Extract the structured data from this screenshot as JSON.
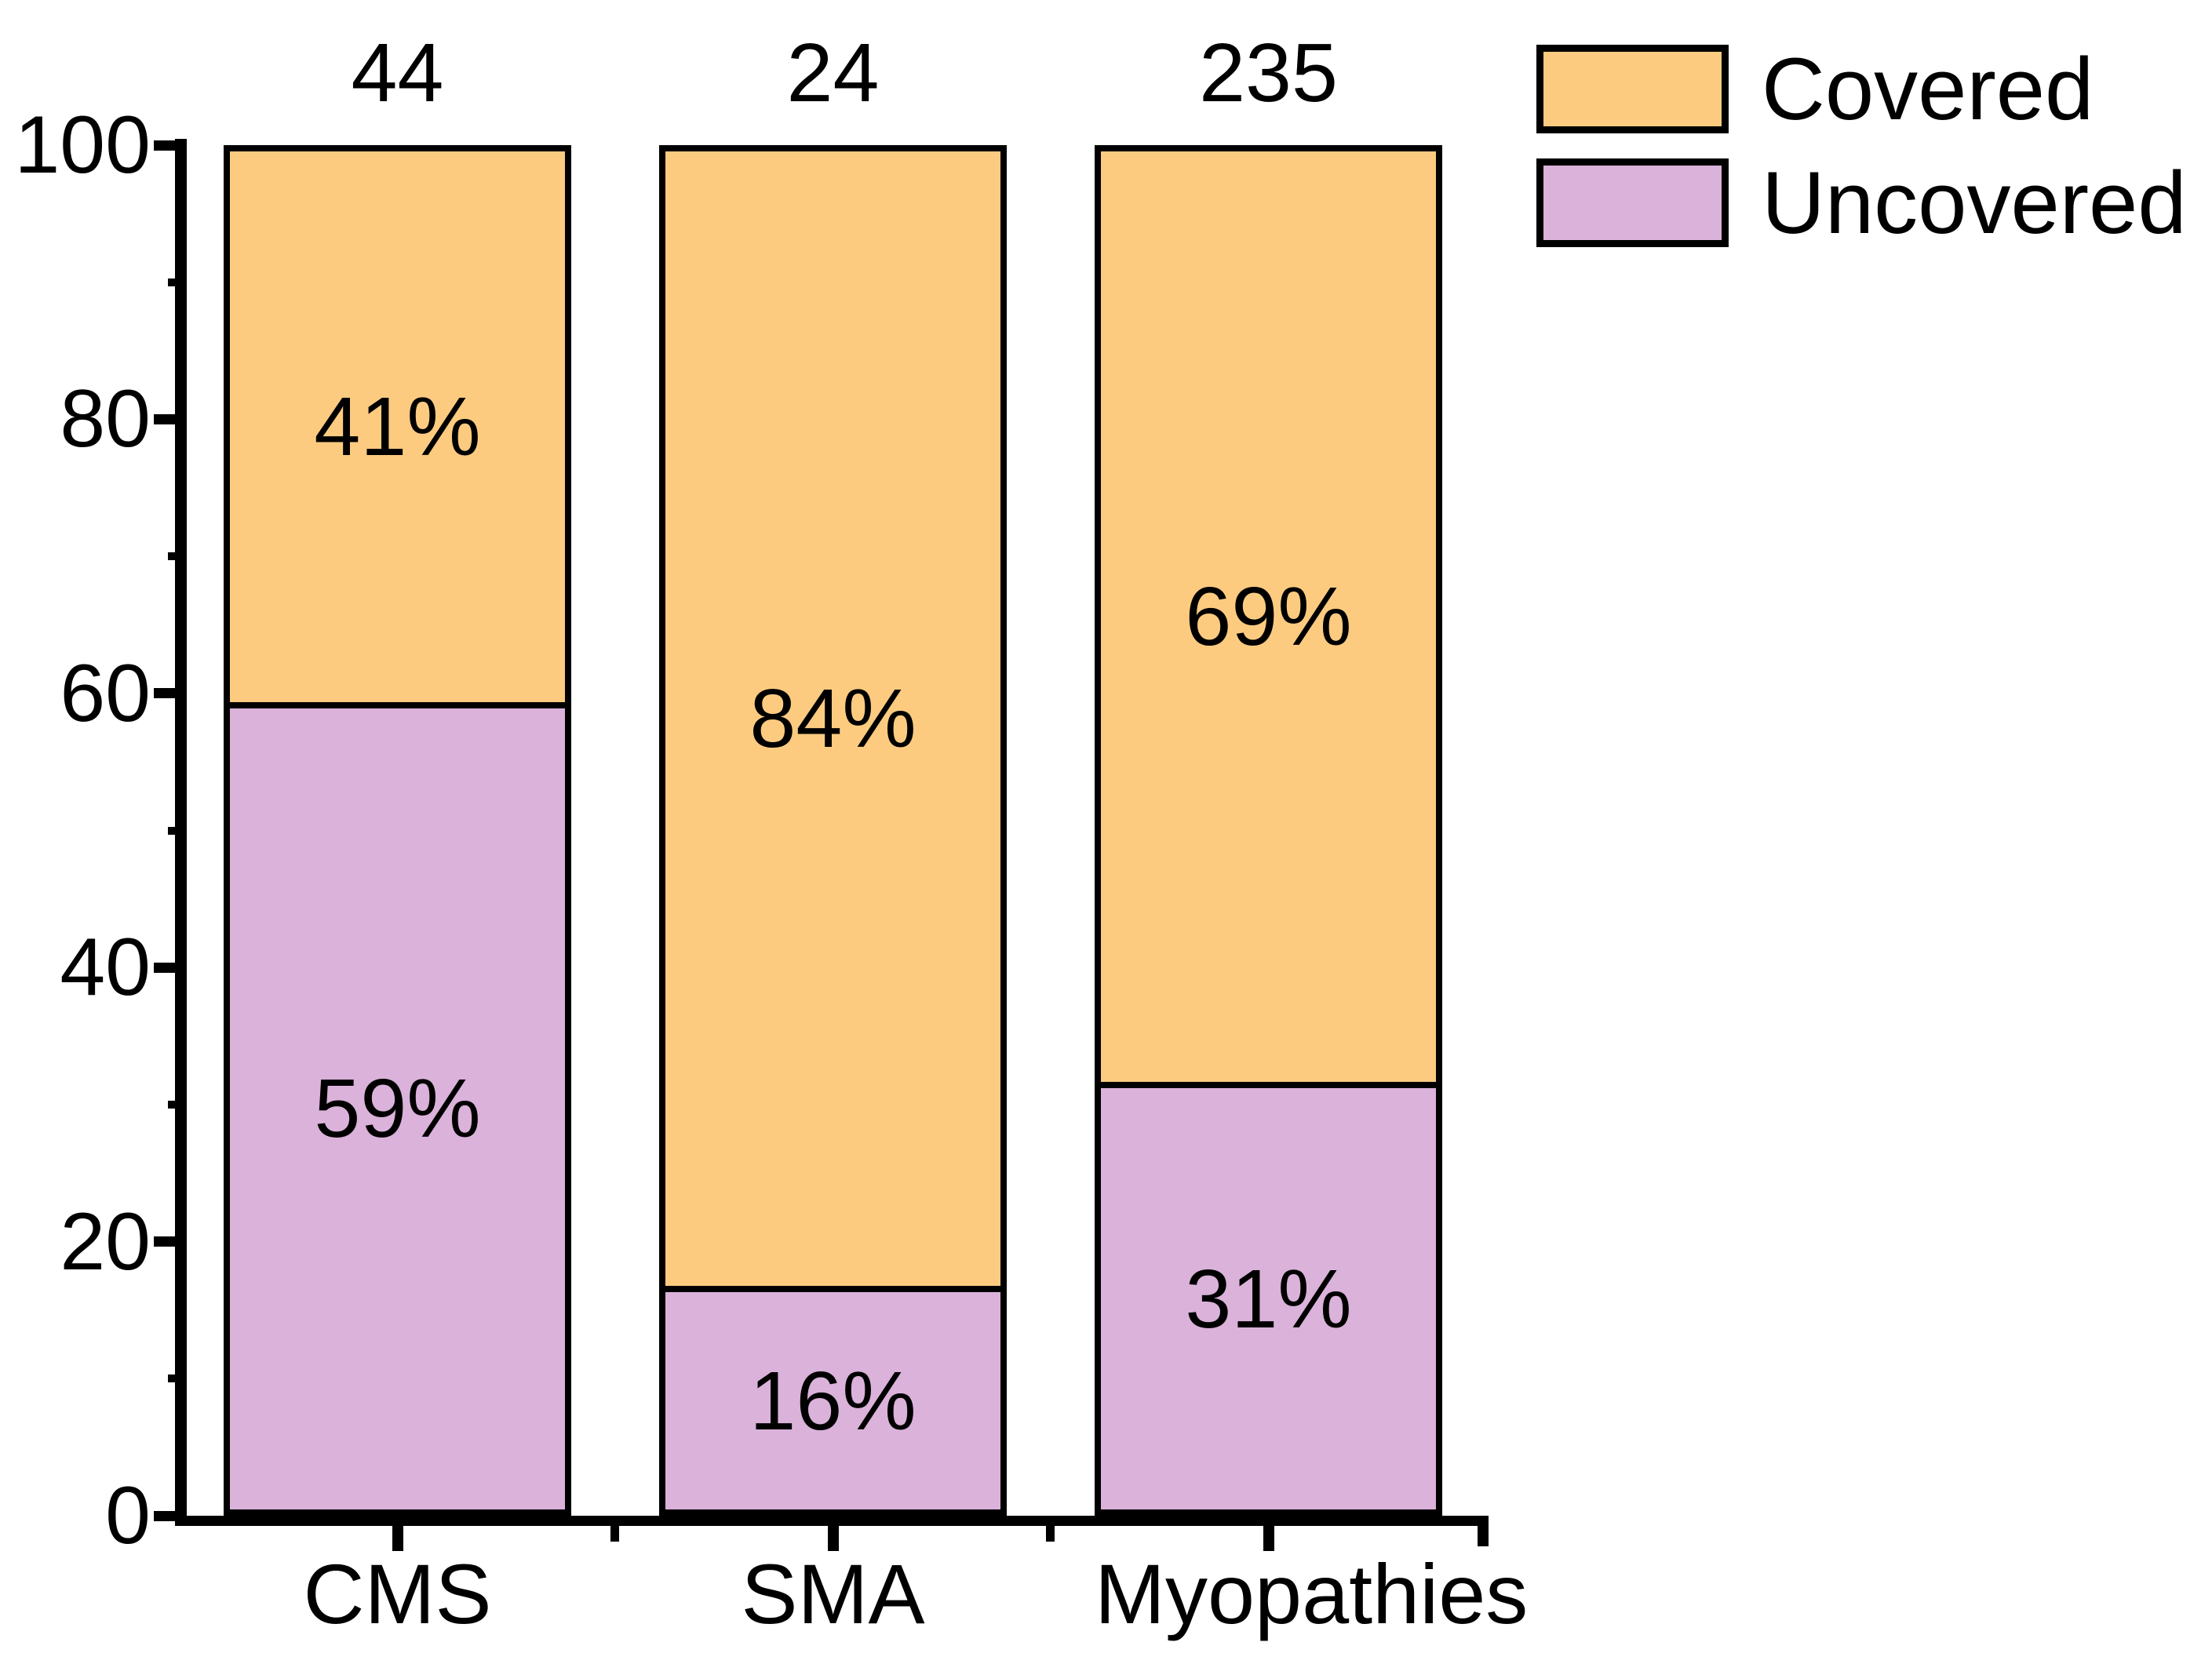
{
  "figure": {
    "background": "#ffffff",
    "outline_color": "#000000"
  },
  "legend": {
    "position": "top-right",
    "items": [
      {
        "label": "Covered",
        "color": "#FCCB80"
      },
      {
        "label": "Uncovered",
        "color": "#DAB2DA"
      }
    ]
  },
  "chart_data": {
    "type": "bar",
    "stacked": true,
    "percent_stacked": true,
    "title": "",
    "xlabel": "",
    "ylabel": "",
    "categories": [
      "CMS",
      "SMA",
      "Myopathies"
    ],
    "counts_above_bars": [
      "44",
      "24",
      "235"
    ],
    "series": [
      {
        "name": "Covered",
        "color": "#FCCB80",
        "values": [
          41,
          84,
          69
        ],
        "labels": [
          "41%",
          "84%",
          "69%"
        ]
      },
      {
        "name": "Uncovered",
        "color": "#DAB2DA",
        "values": [
          59,
          16,
          31
        ],
        "labels": [
          "59%",
          "16%",
          "31%"
        ]
      }
    ],
    "ylim": [
      0,
      100
    ],
    "y_ticks_major": [
      0,
      20,
      40,
      60,
      80,
      100
    ],
    "y_ticks_minor": [
      10,
      30,
      50,
      70,
      90
    ],
    "grid": false,
    "legend_position": "top-right"
  }
}
